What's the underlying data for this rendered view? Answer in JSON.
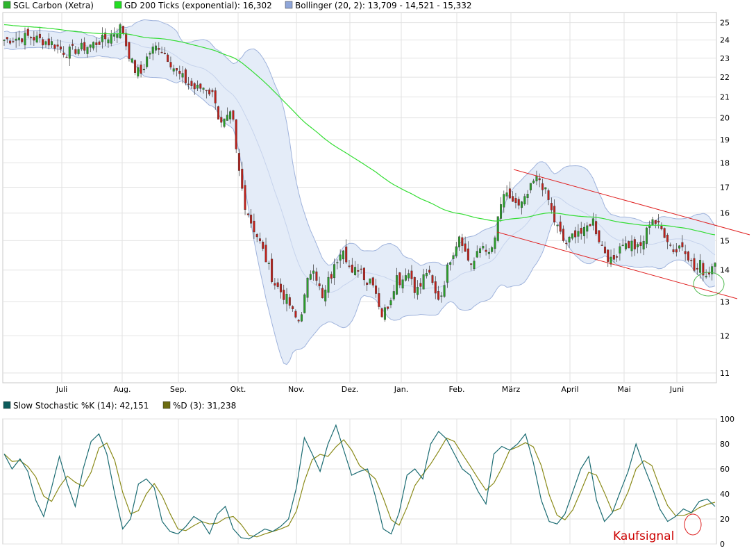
{
  "chart_data": [
    {
      "type": "line",
      "subtype": "candlestick",
      "legend": [
        {
          "name": "SGL Carbon (Xetra)",
          "color": "#2db52d"
        },
        {
          "name": "GD 200 Ticks (exponential): 16,302",
          "color": "#22dd22"
        },
        {
          "name": "Bollinger (20, 2): 13,709 - 14,521 - 15,332",
          "color": "#8fa6d9"
        }
      ],
      "legend_placement": "top-left",
      "x_tick_labels": [
        "Juli",
        "Aug.",
        "Sep.",
        "Okt.",
        "Nov.",
        "Dez.",
        "Jan.",
        "Feb.",
        "März",
        "April",
        "Mai",
        "Juni"
      ],
      "y_ticks": [
        11,
        12,
        13,
        14,
        15,
        16,
        17,
        18,
        19,
        20,
        21,
        22,
        23,
        24,
        25
      ],
      "y_scale": "log",
      "ylim": [
        10.75,
        25.6
      ],
      "grid": true,
      "y_axis_side": "right",
      "colors": {
        "up": "#2aa02a",
        "down": "#c0201a",
        "ma200": "#33dd33",
        "band_line": "#9fb3dc",
        "band_fill": "#e4ecf8",
        "trend": "#e02020",
        "circle": "#4cb84c"
      },
      "close_keypoints": [
        [
          0,
          24.0
        ],
        [
          10,
          24.1
        ],
        [
          20,
          24.2
        ],
        [
          30,
          24.0
        ],
        [
          40,
          23.8
        ],
        [
          50,
          23.3
        ],
        [
          60,
          23.5
        ],
        [
          70,
          23.7
        ],
        [
          80,
          24.0
        ],
        [
          88,
          24.3
        ],
        [
          96,
          24.8
        ],
        [
          100,
          23.6
        ],
        [
          106,
          22.4
        ],
        [
          112,
          22.2
        ],
        [
          118,
          23.3
        ],
        [
          126,
          23.7
        ],
        [
          134,
          23.0
        ],
        [
          140,
          22.3
        ],
        [
          148,
          21.8
        ],
        [
          156,
          21.4
        ],
        [
          164,
          21.5
        ],
        [
          172,
          21.0
        ],
        [
          176,
          19.6
        ],
        [
          182,
          19.9
        ],
        [
          186,
          20.2
        ],
        [
          190,
          18.1
        ],
        [
          196,
          16.4
        ],
        [
          202,
          15.6
        ],
        [
          208,
          15.0
        ],
        [
          214,
          14.3
        ],
        [
          220,
          13.6
        ],
        [
          226,
          13.3
        ],
        [
          232,
          13.0
        ],
        [
          236,
          12.6
        ],
        [
          240,
          12.4
        ],
        [
          244,
          12.9
        ],
        [
          248,
          13.7
        ],
        [
          252,
          14.2
        ],
        [
          256,
          13.6
        ],
        [
          260,
          13.0
        ],
        [
          264,
          13.6
        ],
        [
          268,
          13.9
        ],
        [
          272,
          14.4
        ],
        [
          276,
          14.9
        ],
        [
          280,
          14.3
        ],
        [
          284,
          13.8
        ],
        [
          288,
          14.1
        ],
        [
          292,
          14.0
        ],
        [
          296,
          13.6
        ],
        [
          300,
          13.8
        ],
        [
          304,
          13.2
        ],
        [
          308,
          12.6
        ],
        [
          312,
          12.8
        ],
        [
          316,
          13.2
        ],
        [
          320,
          13.8
        ],
        [
          324,
          13.6
        ],
        [
          328,
          14.0
        ],
        [
          332,
          13.8
        ],
        [
          336,
          13.3
        ],
        [
          340,
          13.5
        ],
        [
          344,
          14.0
        ],
        [
          348,
          13.7
        ],
        [
          352,
          13.2
        ],
        [
          356,
          13.1
        ],
        [
          360,
          13.8
        ],
        [
          364,
          14.4
        ],
        [
          368,
          14.8
        ],
        [
          372,
          15.3
        ],
        [
          376,
          14.6
        ],
        [
          380,
          14.2
        ],
        [
          384,
          14.3
        ],
        [
          388,
          14.7
        ],
        [
          392,
          14.9
        ],
        [
          396,
          14.4
        ],
        [
          400,
          15.0
        ],
        [
          404,
          16.0
        ],
        [
          408,
          16.8
        ],
        [
          412,
          16.4
        ],
        [
          416,
          16.5
        ],
        [
          420,
          16.2
        ],
        [
          424,
          16.4
        ],
        [
          428,
          16.8
        ],
        [
          432,
          17.2
        ],
        [
          436,
          17.4
        ],
        [
          440,
          17.0
        ],
        [
          444,
          16.5
        ],
        [
          448,
          15.8
        ],
        [
          452,
          15.4
        ],
        [
          456,
          15.0
        ],
        [
          460,
          14.9
        ],
        [
          464,
          15.2
        ],
        [
          468,
          15.4
        ],
        [
          472,
          15.2
        ],
        [
          476,
          15.5
        ],
        [
          480,
          15.8
        ],
        [
          484,
          15.2
        ],
        [
          488,
          14.8
        ],
        [
          492,
          14.5
        ],
        [
          496,
          14.2
        ],
        [
          500,
          14.6
        ],
        [
          504,
          15.0
        ],
        [
          508,
          14.8
        ],
        [
          512,
          14.9
        ],
        [
          516,
          14.7
        ],
        [
          520,
          14.8
        ],
        [
          524,
          15.3
        ],
        [
          528,
          15.9
        ],
        [
          532,
          15.6
        ],
        [
          536,
          15.4
        ],
        [
          540,
          15.2
        ],
        [
          544,
          14.8
        ],
        [
          548,
          14.6
        ],
        [
          552,
          14.9
        ],
        [
          556,
          14.7
        ],
        [
          560,
          14.3
        ],
        [
          564,
          13.9
        ],
        [
          568,
          14.2
        ],
        [
          572,
          13.8
        ],
        [
          576,
          14.0
        ],
        [
          580,
          14.4
        ]
      ],
      "bar_count": 240
    },
    {
      "type": "line",
      "legend": [
        {
          "name": "Slow Stochastic %K (14): 42,151",
          "color": "#0b5a5a"
        },
        {
          "name": "%D (3): 31,238",
          "color": "#6b6b10"
        }
      ],
      "y_ticks": [
        0,
        20,
        40,
        60,
        80,
        100
      ],
      "ylim": [
        0,
        100
      ],
      "grid": true,
      "y_axis_side": "right",
      "k_keypoints": [
        [
          0,
          72
        ],
        [
          3,
          60
        ],
        [
          6,
          68
        ],
        [
          9,
          58
        ],
        [
          12,
          35
        ],
        [
          15,
          22
        ],
        [
          18,
          45
        ],
        [
          21,
          70
        ],
        [
          24,
          48
        ],
        [
          27,
          30
        ],
        [
          30,
          60
        ],
        [
          33,
          82
        ],
        [
          36,
          88
        ],
        [
          39,
          72
        ],
        [
          42,
          40
        ],
        [
          45,
          12
        ],
        [
          48,
          20
        ],
        [
          51,
          48
        ],
        [
          54,
          52
        ],
        [
          57,
          45
        ],
        [
          60,
          18
        ],
        [
          63,
          10
        ],
        [
          66,
          8
        ],
        [
          69,
          14
        ],
        [
          72,
          22
        ],
        [
          75,
          18
        ],
        [
          78,
          8
        ],
        [
          81,
          24
        ],
        [
          84,
          30
        ],
        [
          87,
          12
        ],
        [
          90,
          5
        ],
        [
          93,
          4
        ],
        [
          96,
          8
        ],
        [
          99,
          12
        ],
        [
          102,
          10
        ],
        [
          105,
          14
        ],
        [
          108,
          20
        ],
        [
          111,
          45
        ],
        [
          114,
          85
        ],
        [
          117,
          72
        ],
        [
          120,
          58
        ],
        [
          123,
          80
        ],
        [
          126,
          95
        ],
        [
          129,
          75
        ],
        [
          132,
          55
        ],
        [
          135,
          58
        ],
        [
          138,
          60
        ],
        [
          141,
          38
        ],
        [
          144,
          12
        ],
        [
          147,
          8
        ],
        [
          150,
          25
        ],
        [
          153,
          55
        ],
        [
          156,
          60
        ],
        [
          159,
          52
        ],
        [
          162,
          80
        ],
        [
          165,
          90
        ],
        [
          168,
          84
        ],
        [
          171,
          72
        ],
        [
          174,
          60
        ],
        [
          177,
          55
        ],
        [
          180,
          42
        ],
        [
          183,
          32
        ],
        [
          186,
          72
        ],
        [
          189,
          78
        ],
        [
          192,
          75
        ],
        [
          195,
          80
        ],
        [
          198,
          88
        ],
        [
          201,
          65
        ],
        [
          204,
          35
        ],
        [
          207,
          18
        ],
        [
          210,
          16
        ],
        [
          213,
          24
        ],
        [
          216,
          42
        ],
        [
          219,
          60
        ],
        [
          222,
          70
        ],
        [
          225,
          35
        ],
        [
          228,
          18
        ],
        [
          231,
          25
        ],
        [
          234,
          42
        ],
        [
          237,
          58
        ],
        [
          240,
          80
        ],
        [
          243,
          62
        ],
        [
          246,
          46
        ],
        [
          249,
          28
        ],
        [
          252,
          18
        ],
        [
          255,
          22
        ],
        [
          258,
          28
        ],
        [
          261,
          25
        ],
        [
          264,
          34
        ],
        [
          267,
          36
        ],
        [
          270,
          30
        ]
      ],
      "d_lag": 2,
      "annotation": "Kaufsignal"
    }
  ]
}
